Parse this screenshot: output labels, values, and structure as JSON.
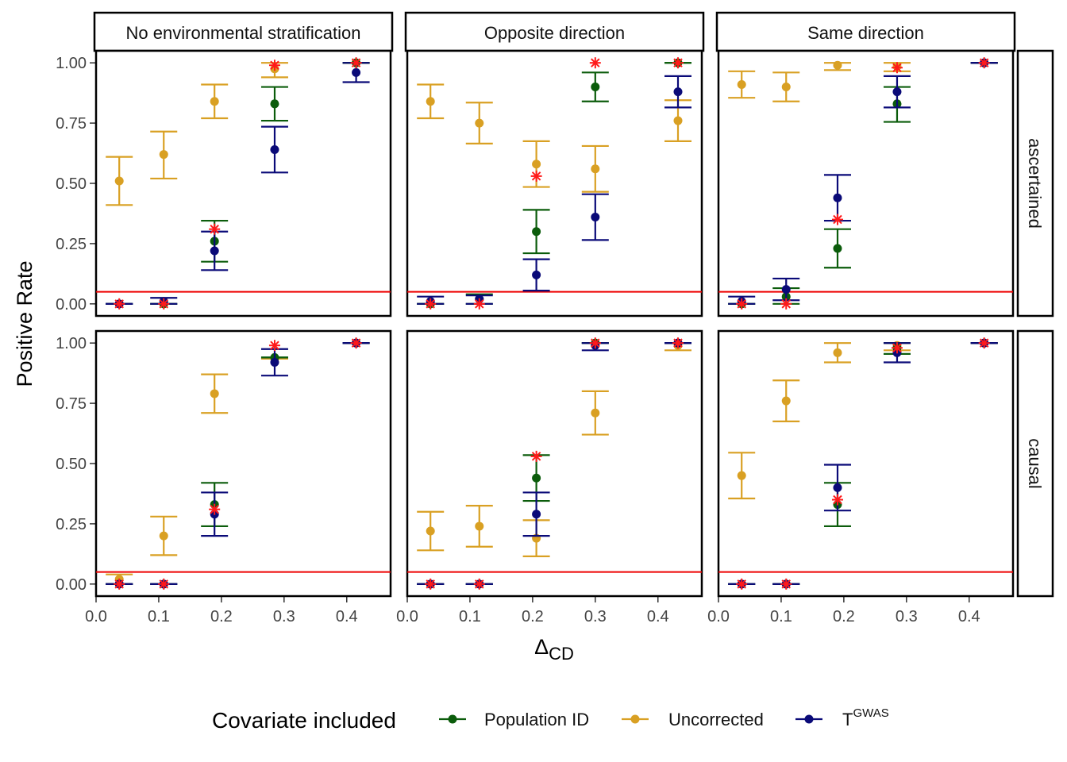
{
  "chart_data": {
    "type": "scatter",
    "description_free": true,
    "ylabel": "Positive Rate",
    "xlabel_main": "Δ",
    "xlabel_sub": "CD",
    "x_ticks": [
      "0.0",
      "0.1",
      "0.2",
      "0.3",
      "0.4"
    ],
    "y_ticks": [
      "0.00",
      "0.25",
      "0.50",
      "0.75",
      "1.00"
    ],
    "xlim": [
      0,
      0.47
    ],
    "ylim": [
      -0.05,
      1.05
    ],
    "reference_line": 0.05,
    "reference_color": "#ee0000",
    "columns": [
      "No environmental stratification",
      "Opposite direction",
      "Same direction"
    ],
    "rows": [
      "ascertained",
      "causal"
    ],
    "legend": {
      "title": "Covariate included",
      "entries": [
        {
          "key": "pop",
          "label": "Population ID",
          "color": "#0b5c0b"
        },
        {
          "key": "unc",
          "label": "Uncorrected",
          "color": "#d9a023"
        },
        {
          "key": "tgw",
          "label": "T",
          "label_sup": "GWAS",
          "color": "#0a0a78"
        }
      ]
    },
    "star_color": "#ff1a1a",
    "panels": [
      {
        "column": "No environmental stratification",
        "row": "ascertained",
        "x": [
          0.037,
          0.108,
          0.189,
          0.285,
          0.415
        ],
        "series": {
          "unc": [
            [
              0.51,
              0.41,
              0.61
            ],
            [
              0.62,
              0.52,
              0.715
            ],
            [
              0.84,
              0.77,
              0.91
            ],
            [
              0.975,
              0.94,
              1.0
            ],
            [
              1.0,
              1.0,
              1.0
            ]
          ],
          "pop": [
            [
              0.0,
              0.0,
              0.0
            ],
            [
              0.0,
              0.0,
              0.0
            ],
            [
              0.26,
              0.175,
              0.345
            ],
            [
              0.83,
              0.76,
              0.9
            ],
            [
              1.0,
              1.0,
              1.0
            ]
          ],
          "tgw": [
            [
              0.0,
              0.0,
              0.0
            ],
            [
              0.01,
              0.0,
              0.025
            ],
            [
              0.22,
              0.14,
              0.3
            ],
            [
              0.64,
              0.545,
              0.735
            ],
            [
              0.96,
              0.92,
              1.0
            ]
          ]
        },
        "stars": [
          0.0,
          0.0,
          0.31,
          0.99,
          1.0
        ]
      },
      {
        "column": "Opposite direction",
        "row": "ascertained",
        "x": [
          0.037,
          0.115,
          0.206,
          0.3,
          0.432
        ],
        "series": {
          "unc": [
            [
              0.84,
              0.77,
              0.91
            ],
            [
              0.75,
              0.665,
              0.835
            ],
            [
              0.58,
              0.485,
              0.675
            ],
            [
              0.56,
              0.465,
              0.655
            ],
            [
              0.76,
              0.675,
              0.845
            ]
          ],
          "pop": [
            [
              0.0,
              0.0,
              0.0
            ],
            [
              0.02,
              0.0,
              0.04
            ],
            [
              0.3,
              0.21,
              0.39
            ],
            [
              0.9,
              0.84,
              0.96
            ],
            [
              1.0,
              1.0,
              1.0
            ]
          ],
          "tgw": [
            [
              0.01,
              0.0,
              0.03
            ],
            [
              0.02,
              0.0,
              0.035
            ],
            [
              0.12,
              0.055,
              0.185
            ],
            [
              0.36,
              0.265,
              0.455
            ],
            [
              0.88,
              0.815,
              0.945
            ]
          ]
        },
        "stars": [
          0.0,
          0.0,
          0.53,
          1.0,
          1.0
        ]
      },
      {
        "column": "Same direction",
        "row": "ascertained",
        "x": [
          0.037,
          0.108,
          0.19,
          0.285,
          0.424
        ],
        "series": {
          "unc": [
            [
              0.91,
              0.855,
              0.965
            ],
            [
              0.9,
              0.84,
              0.96
            ],
            [
              0.99,
              0.97,
              1.0
            ],
            [
              0.985,
              0.965,
              1.0
            ],
            [
              1.0,
              1.0,
              1.0
            ]
          ],
          "pop": [
            [
              0.0,
              0.0,
              0.0
            ],
            [
              0.03,
              0.0,
              0.065
            ],
            [
              0.23,
              0.15,
              0.31
            ],
            [
              0.83,
              0.755,
              0.9
            ],
            [
              1.0,
              1.0,
              1.0
            ]
          ],
          "tgw": [
            [
              0.01,
              0.0,
              0.03
            ],
            [
              0.06,
              0.015,
              0.105
            ],
            [
              0.44,
              0.345,
              0.535
            ],
            [
              0.88,
              0.815,
              0.945
            ],
            [
              1.0,
              1.0,
              1.0
            ]
          ]
        },
        "stars": [
          0.0,
          0.0,
          0.35,
          0.98,
          1.0
        ]
      },
      {
        "column": "No environmental stratification",
        "row": "causal",
        "x": [
          0.037,
          0.108,
          0.189,
          0.285,
          0.415
        ],
        "series": {
          "unc": [
            [
              0.02,
              0.0,
              0.04
            ],
            [
              0.2,
              0.12,
              0.28
            ],
            [
              0.79,
              0.71,
              0.87
            ],
            [
              0.935,
              0.935,
              0.935
            ],
            [
              1.0,
              1.0,
              1.0
            ]
          ],
          "pop": [
            [
              0.0,
              0.0,
              0.0
            ],
            [
              0.0,
              0.0,
              0.0
            ],
            [
              0.33,
              0.24,
              0.42
            ],
            [
              0.94,
              0.94,
              0.94
            ],
            [
              1.0,
              1.0,
              1.0
            ]
          ],
          "tgw": [
            [
              0.0,
              0.0,
              0.0
            ],
            [
              0.0,
              0.0,
              0.0
            ],
            [
              0.29,
              0.2,
              0.38
            ],
            [
              0.92,
              0.865,
              0.975
            ],
            [
              1.0,
              1.0,
              1.0
            ]
          ]
        },
        "stars": [
          0.0,
          0.0,
          0.31,
          0.99,
          1.0
        ]
      },
      {
        "column": "Opposite direction",
        "row": "causal",
        "x": [
          0.037,
          0.115,
          0.206,
          0.3,
          0.432
        ],
        "series": {
          "unc": [
            [
              0.22,
              0.14,
              0.3
            ],
            [
              0.24,
              0.155,
              0.325
            ],
            [
              0.19,
              0.115,
              0.265
            ],
            [
              0.71,
              0.62,
              0.8
            ],
            [
              0.99,
              0.97,
              1.0
            ]
          ],
          "pop": [
            [
              0.0,
              0.0,
              0.0
            ],
            [
              0.0,
              0.0,
              0.0
            ],
            [
              0.44,
              0.345,
              0.535
            ],
            [
              1.0,
              1.0,
              1.0
            ],
            [
              1.0,
              1.0,
              1.0
            ]
          ],
          "tgw": [
            [
              0.0,
              0.0,
              0.0
            ],
            [
              0.0,
              0.0,
              0.0
            ],
            [
              0.29,
              0.2,
              0.38
            ],
            [
              0.99,
              0.97,
              1.0
            ],
            [
              1.0,
              1.0,
              1.0
            ]
          ]
        },
        "stars": [
          0.0,
          0.0,
          0.53,
          1.0,
          1.0
        ]
      },
      {
        "column": "Same direction",
        "row": "causal",
        "x": [
          0.037,
          0.108,
          0.19,
          0.285,
          0.424
        ],
        "series": {
          "unc": [
            [
              0.45,
              0.355,
              0.545
            ],
            [
              0.76,
              0.675,
              0.845
            ],
            [
              0.96,
              0.92,
              1.0
            ],
            [
              0.99,
              0.97,
              1.0
            ],
            [
              1.0,
              1.0,
              1.0
            ]
          ],
          "pop": [
            [
              0.0,
              0.0,
              0.0
            ],
            [
              0.0,
              0.0,
              0.0
            ],
            [
              0.33,
              0.24,
              0.42
            ],
            [
              0.98,
              0.955,
              1.0
            ],
            [
              1.0,
              1.0,
              1.0
            ]
          ],
          "tgw": [
            [
              0.0,
              0.0,
              0.0
            ],
            [
              0.0,
              0.0,
              0.0
            ],
            [
              0.4,
              0.305,
              0.495
            ],
            [
              0.96,
              0.92,
              1.0
            ],
            [
              1.0,
              1.0,
              1.0
            ]
          ]
        },
        "stars": [
          0.0,
          0.0,
          0.35,
          0.98,
          1.0
        ]
      }
    ]
  }
}
